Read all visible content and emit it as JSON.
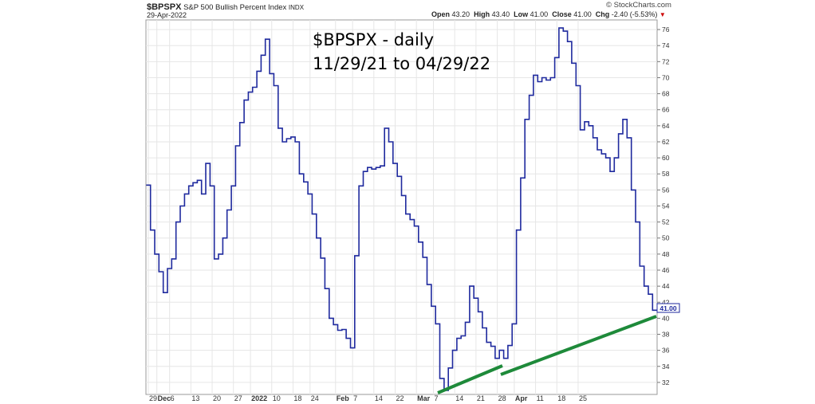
{
  "header": {
    "symbol": "$BPSPX",
    "name": "S&P 500 Bullish Percent Index",
    "exchange": "INDX",
    "date": "29-Apr-2022",
    "open_label": "Open",
    "open": "43.20",
    "high_label": "High",
    "high": "43.40",
    "low_label": "Low",
    "low": "41.00",
    "close_label": "Close",
    "close": "41.00",
    "chg_label": "Chg",
    "chg": "-2.40 (-5.53%)",
    "chg_arrow": "▼",
    "watermark": "© StockCharts.com"
  },
  "annotation": {
    "line1": "$BPSPX - daily",
    "line2": "11/29/21 to 04/29/22"
  },
  "last_value_label": "41.00",
  "colors": {
    "series": "#1f2a9e",
    "trendline": "#1e8a3a",
    "grid": "#e6e6e6",
    "chg_negative": "#cc0000"
  },
  "chart_data": {
    "type": "line",
    "title": "$BPSPX S&P 500 Bullish Percent Index",
    "ylim": [
      30.5,
      77.2
    ],
    "yticks": [
      32,
      34,
      36,
      38,
      40,
      42,
      44,
      46,
      48,
      50,
      52,
      54,
      56,
      58,
      60,
      62,
      64,
      66,
      68,
      70,
      72,
      74,
      76
    ],
    "xtick_labels": [
      {
        "label": "29",
        "index": 0
      },
      {
        "label": "Dec",
        "index": 2
      },
      {
        "label": "6",
        "index": 5
      },
      {
        "label": "13",
        "index": 10
      },
      {
        "label": "20",
        "index": 15
      },
      {
        "label": "27",
        "index": 20
      },
      {
        "label": "2022",
        "index": 24
      },
      {
        "label": "10",
        "index": 29
      },
      {
        "label": "18",
        "index": 34
      },
      {
        "label": "24",
        "index": 38
      },
      {
        "label": "Feb",
        "index": 44
      },
      {
        "label": "7",
        "index": 48
      },
      {
        "label": "14",
        "index": 53
      },
      {
        "label": "22",
        "index": 58
      },
      {
        "label": "Mar",
        "index": 63
      },
      {
        "label": "7",
        "index": 67
      },
      {
        "label": "14",
        "index": 72
      },
      {
        "label": "21",
        "index": 77
      },
      {
        "label": "28",
        "index": 82
      },
      {
        "label": "Apr",
        "index": 86
      },
      {
        "label": "11",
        "index": 91
      },
      {
        "label": "18",
        "index": 96
      },
      {
        "label": "25",
        "index": 101
      }
    ],
    "series": [
      {
        "values": [
          56.6,
          51.0,
          48.0,
          45.8,
          43.2,
          46.2,
          47.4,
          52.0,
          54.0,
          55.5,
          56.5,
          56.9,
          57.2,
          55.5,
          59.3,
          56.5,
          47.4,
          48.0,
          50.0,
          53.5,
          56.5,
          61.5,
          64.4,
          67.2,
          68.2,
          68.8,
          70.8,
          72.8,
          74.8,
          70.5,
          69.0,
          63.7,
          62.0,
          62.4,
          62.6,
          62.0,
          58.0,
          57.0,
          55.5,
          53.0,
          50.0,
          47.5,
          43.7,
          40.0,
          39.2,
          38.5,
          38.6,
          37.5,
          36.3,
          47.8,
          56.5,
          58.3,
          58.8,
          58.6,
          58.8,
          59.0,
          63.7,
          62.0,
          59.3,
          57.7,
          55.3,
          53.0,
          52.3,
          51.5,
          49.5,
          47.6,
          44.2,
          41.5,
          39.3,
          32.5,
          31.0,
          33.8,
          36.0,
          37.5,
          37.8,
          39.5,
          44.0,
          42.5,
          40.8,
          38.8,
          37.0,
          36.5,
          35.0,
          36.0,
          35.0,
          36.6,
          39.3,
          51.0,
          57.5,
          64.8,
          67.8,
          70.3,
          69.5,
          70.0,
          69.7,
          70.0,
          72.5,
          76.2,
          75.8,
          74.5,
          71.8,
          69.0,
          63.5,
          64.5,
          64.0,
          62.5,
          61.0,
          60.5,
          60.0,
          58.3,
          60.0,
          63.0,
          64.8,
          62.5,
          56.0,
          52.0,
          46.5,
          44.0,
          43.0,
          41.0
        ]
      }
    ]
  }
}
